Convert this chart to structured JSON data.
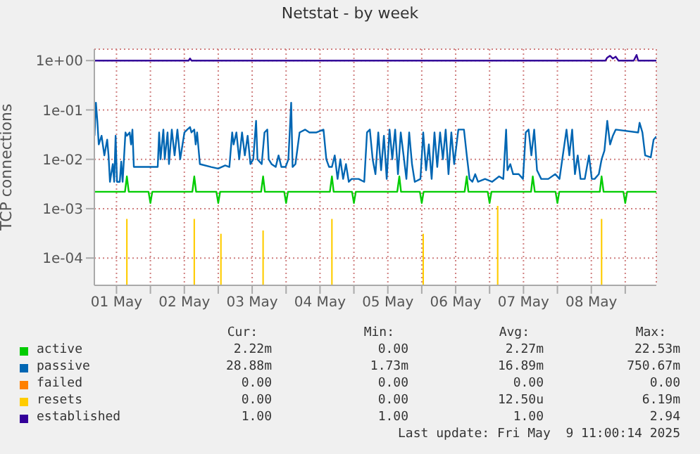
{
  "chart_data": {
    "type": "line",
    "title": "Netstat - by week",
    "ylabel": "TCP connections",
    "log": true,
    "grid": true,
    "legend": "bottom",
    "xlim": [
      "2025-05-01T04:10",
      "2025-05-09T11:00"
    ],
    "xticks": [
      {
        "value": "2025-05-01T12:00",
        "label": "01 May"
      },
      {
        "value": "2025-05-02T00:00",
        "label": null
      },
      {
        "value": "2025-05-02T12:00",
        "label": "02 May"
      },
      {
        "value": "2025-05-03T00:00",
        "label": null
      },
      {
        "value": "2025-05-03T12:00",
        "label": "03 May"
      },
      {
        "value": "2025-05-04T00:00",
        "label": null
      },
      {
        "value": "2025-05-04T12:00",
        "label": "04 May"
      },
      {
        "value": "2025-05-05T00:00",
        "label": null
      },
      {
        "value": "2025-05-05T12:00",
        "label": "05 May"
      },
      {
        "value": "2025-05-06T00:00",
        "label": null
      },
      {
        "value": "2025-05-06T12:00",
        "label": "06 May"
      },
      {
        "value": "2025-05-07T00:00",
        "label": null
      },
      {
        "value": "2025-05-07T12:00",
        "label": "07 May"
      },
      {
        "value": "2025-05-08T00:00",
        "label": null
      },
      {
        "value": "2025-05-08T12:00",
        "label": "08 May"
      },
      {
        "value": "2025-05-09T00:00",
        "label": null
      }
    ],
    "ylim": [
      2.8e-05,
      1.7
    ],
    "yticks": [
      {
        "value": 0.0001,
        "label": "1e-04"
      },
      {
        "value": 0.001,
        "label": "1e-03"
      },
      {
        "value": 0.01,
        "label": "1e-02"
      },
      {
        "value": 0.1,
        "label": "1e-01"
      },
      {
        "value": 1,
        "label": "1e+00"
      }
    ],
    "series": [
      {
        "name": "active",
        "color": "#00cc00",
        "x": [
          "2025-05-01T04:10",
          "2025-05-01T15:00",
          "2025-05-01T15:40",
          "2025-05-01T16:20",
          "2025-05-01T23:20",
          "2025-05-02T00:00",
          "2025-05-02T00:40",
          "2025-05-02T14:50",
          "2025-05-02T15:31",
          "2025-05-02T16:10",
          "2025-05-02T23:20",
          "2025-05-03T00:00",
          "2025-05-03T00:40",
          "2025-05-03T15:10",
          "2025-05-03T15:52",
          "2025-05-03T16:30",
          "2025-05-03T23:20",
          "2025-05-04T00:00",
          "2025-05-04T00:40",
          "2025-05-04T15:30",
          "2025-05-04T16:13",
          "2025-05-04T16:50",
          "2025-05-04T23:20",
          "2025-05-05T00:00",
          "2025-05-05T00:40",
          "2025-05-05T15:20",
          "2025-05-05T16:04",
          "2025-05-05T16:40",
          "2025-05-05T23:20",
          "2025-05-06T00:00",
          "2025-05-06T00:40",
          "2025-05-06T15:10",
          "2025-05-06T15:56",
          "2025-05-06T16:30",
          "2025-05-06T23:20",
          "2025-05-07T00:00",
          "2025-05-07T00:40",
          "2025-05-07T14:40",
          "2025-05-07T15:17",
          "2025-05-07T16:00",
          "2025-05-07T23:20",
          "2025-05-08T00:00",
          "2025-05-08T00:40",
          "2025-05-08T15:00",
          "2025-05-08T15:38",
          "2025-05-08T16:20",
          "2025-05-08T23:20",
          "2025-05-09T00:00",
          "2025-05-09T00:40",
          "2025-05-09T11:00"
        ],
        "values": [
          0.0022,
          0.0022,
          0.0045,
          0.0022,
          0.0022,
          0.0013,
          0.0022,
          0.0022,
          0.0045,
          0.0022,
          0.0022,
          0.0013,
          0.0022,
          0.0022,
          0.0045,
          0.0022,
          0.0022,
          0.0013,
          0.0022,
          0.0022,
          0.0045,
          0.0022,
          0.0022,
          0.0013,
          0.0022,
          0.0022,
          0.0045,
          0.0022,
          0.0022,
          0.0013,
          0.0022,
          0.0022,
          0.0045,
          0.0022,
          0.0022,
          0.0013,
          0.0022,
          0.0022,
          0.0045,
          0.0022,
          0.0022,
          0.0013,
          0.0022,
          0.0022,
          0.0045,
          0.0022,
          0.0022,
          0.0013,
          0.0022,
          0.0022
        ]
      },
      {
        "name": "passive",
        "color": "#0066b3",
        "x": [
          "2025-05-01T04:13",
          "2025-05-01T04:43",
          "2025-05-01T05:13",
          "2025-05-01T05:43",
          "2025-05-01T06:43",
          "2025-05-01T07:42",
          "2025-05-01T08:42",
          "2025-05-01T09:11",
          "2025-05-01T09:41",
          "2025-05-01T10:41",
          "2025-05-01T11:11",
          "2025-05-01T11:41",
          "2025-05-01T12:11",
          "2025-05-01T13:10",
          "2025-05-01T13:40",
          "2025-05-01T14:10",
          "2025-05-01T15:10",
          "2025-05-01T15:40",
          "2025-05-01T16:39",
          "2025-05-01T17:09",
          "2025-05-01T17:38",
          "2025-05-01T18:08",
          "2025-05-02T02:35",
          "2025-05-02T03:05",
          "2025-05-02T03:35",
          "2025-05-02T04:35",
          "2025-05-02T05:04",
          "2025-05-02T06:04",
          "2025-05-02T06:34",
          "2025-05-02T07:34",
          "2025-05-02T08:33",
          "2025-05-02T09:33",
          "2025-05-02T10:32",
          "2025-05-02T12:02",
          "2025-05-02T13:02",
          "2025-05-02T14:01",
          "2025-05-02T14:31",
          "2025-05-02T15:31",
          "2025-05-02T16:01",
          "2025-05-02T16:31",
          "2025-05-02T17:30",
          "2025-05-02T21:29",
          "2025-05-02T23:58",
          "2025-05-03T02:27",
          "2025-05-03T03:56",
          "2025-05-03T04:56",
          "2025-05-03T05:26",
          "2025-05-03T06:25",
          "2025-05-03T07:25",
          "2025-05-03T08:25",
          "2025-05-03T09:24",
          "2025-05-03T10:24",
          "2025-05-03T11:23",
          "2025-05-03T12:23",
          "2025-05-03T13:23",
          "2025-05-03T13:53",
          "2025-05-03T15:22",
          "2025-05-03T16:22",
          "2025-05-03T17:21",
          "2025-05-03T17:51",
          "2025-05-03T18:51",
          "2025-05-03T20:20",
          "2025-05-03T21:20",
          "2025-05-03T22:20",
          "2025-05-03T23:49",
          "2025-05-04T00:49",
          "2025-05-04T01:48",
          "2025-05-04T02:18",
          "2025-05-04T03:18",
          "2025-05-04T04:47",
          "2025-05-04T06:46",
          "2025-05-04T08:16",
          "2025-05-04T10:45",
          "2025-05-04T13:14",
          "2025-05-04T14:14",
          "2025-05-04T15:13",
          "2025-05-04T16:13",
          "2025-05-04T17:13",
          "2025-05-04T18:13",
          "2025-05-04T19:12",
          "2025-05-04T20:11",
          "2025-05-04T21:11",
          "2025-05-04T22:11",
          "2025-05-04T23:10",
          "2025-05-05T01:40",
          "2025-05-05T03:39",
          "2025-05-05T04:38",
          "2025-05-05T05:38",
          "2025-05-05T06:38",
          "2025-05-05T07:37",
          "2025-05-05T08:37",
          "2025-05-05T09:37",
          "2025-05-05T10:37",
          "2025-05-05T11:36",
          "2025-05-05T12:36",
          "2025-05-05T13:35",
          "2025-05-05T14:35",
          "2025-05-05T15:35",
          "2025-05-05T16:34",
          "2025-05-05T17:34",
          "2025-05-05T18:34",
          "2025-05-05T19:33",
          "2025-05-05T20:33",
          "2025-05-05T21:32",
          "2025-05-05T23:32",
          "2025-05-06T00:31",
          "2025-05-06T01:31",
          "2025-05-06T02:31",
          "2025-05-06T03:30",
          "2025-05-06T04:30",
          "2025-05-06T05:29",
          "2025-05-06T06:29",
          "2025-05-06T07:29",
          "2025-05-06T08:28",
          "2025-05-06T09:28",
          "2025-05-06T10:28",
          "2025-05-06T11:28",
          "2025-05-06T12:57",
          "2025-05-06T14:56",
          "2025-05-06T15:56",
          "2025-05-06T16:55",
          "2025-05-06T17:55",
          "2025-05-06T18:55",
          "2025-05-06T19:55",
          "2025-05-06T22:23",
          "2025-05-07T00:53",
          "2025-05-07T03:22",
          "2025-05-07T04:51",
          "2025-05-07T05:51",
          "2025-05-07T06:20",
          "2025-05-07T07:20",
          "2025-05-07T08:20",
          "2025-05-07T10:19",
          "2025-05-07T11:49",
          "2025-05-07T12:48",
          "2025-05-07T13:48",
          "2025-05-07T14:47",
          "2025-05-07T15:47",
          "2025-05-07T16:47",
          "2025-05-07T18:16",
          "2025-05-07T20:46",
          "2025-05-07T23:14",
          "2025-05-08T00:44",
          "2025-05-08T03:13",
          "2025-05-08T04:13",
          "2025-05-08T05:13",
          "2025-05-08T06:12",
          "2025-05-08T07:11",
          "2025-05-08T08:11",
          "2025-05-08T09:41",
          "2025-05-08T11:10",
          "2025-05-08T12:10",
          "2025-05-08T13:10",
          "2025-05-08T14:39",
          "2025-05-08T15:38",
          "2025-05-08T16:38",
          "2025-05-08T17:38",
          "2025-05-08T18:38",
          "2025-05-08T19:37",
          "2025-05-08T20:37",
          "2025-05-09T04:34",
          "2025-05-09T05:04",
          "2025-05-09T06:04",
          "2025-05-09T07:03",
          "2025-05-09T09:02",
          "2025-05-09T10:02",
          "2025-05-09T11:00"
        ],
        "values": [
          0.03,
          0.14,
          0.06,
          0.02,
          0.03,
          0.012,
          0.025,
          0.012,
          0.0035,
          0.008,
          0.0035,
          0.03,
          0.0035,
          0.0035,
          0.009,
          0.0035,
          0.035,
          0.03,
          0.035,
          0.02,
          0.04,
          0.007,
          0.007,
          0.035,
          0.01,
          0.04,
          0.01,
          0.035,
          0.008,
          0.04,
          0.012,
          0.04,
          0.01,
          0.035,
          0.04,
          0.045,
          0.035,
          0.04,
          0.02,
          0.035,
          0.008,
          0.007,
          0.0065,
          0.0075,
          0.007,
          0.035,
          0.02,
          0.035,
          0.01,
          0.035,
          0.012,
          0.03,
          0.008,
          0.01,
          0.06,
          0.01,
          0.008,
          0.035,
          0.04,
          0.01,
          0.008,
          0.007,
          0.012,
          0.007,
          0.007,
          0.01,
          0.14,
          0.007,
          0.008,
          0.035,
          0.04,
          0.035,
          0.035,
          0.04,
          0.01,
          0.007,
          0.007,
          0.012,
          0.004,
          0.01,
          0.004,
          0.008,
          0.0035,
          0.004,
          0.004,
          0.0035,
          0.035,
          0.04,
          0.01,
          0.005,
          0.035,
          0.006,
          0.03,
          0.004,
          0.04,
          0.01,
          0.04,
          0.005,
          0.035,
          0.012,
          0.004,
          0.035,
          0.008,
          0.0035,
          0.004,
          0.035,
          0.006,
          0.02,
          0.004,
          0.035,
          0.007,
          0.035,
          0.01,
          0.04,
          0.005,
          0.035,
          0.008,
          0.04,
          0.04,
          0.012,
          0.004,
          0.0035,
          0.005,
          0.0035,
          0.004,
          0.0035,
          0.0045,
          0.004,
          0.04,
          0.006,
          0.008,
          0.005,
          0.005,
          0.004,
          0.035,
          0.04,
          0.012,
          0.04,
          0.006,
          0.004,
          0.004,
          0.005,
          0.004,
          0.04,
          0.012,
          0.04,
          0.005,
          0.012,
          0.004,
          0.004,
          0.012,
          0.004,
          0.004,
          0.005,
          0.01,
          0.015,
          0.06,
          0.02,
          0.03,
          0.04,
          0.035,
          0.055,
          0.035,
          0.012,
          0.011,
          0.025,
          0.029
        ]
      },
      {
        "name": "failed",
        "color": "#ff8000"
      },
      {
        "name": "resets",
        "color": "#ffcc00",
        "type": "bar",
        "x": [
          "2025-05-01T15:40",
          "2025-05-02T15:31",
          "2025-05-03T00:57",
          "2025-05-03T15:52",
          "2025-05-04T16:13",
          "2025-05-06T00:31",
          "2025-05-07T02:52",
          "2025-05-08T15:38"
        ],
        "values": [
          0.0006,
          0.0006,
          0.0003,
          0.00035,
          0.0006,
          0.0003,
          0.0011,
          0.0006
        ]
      },
      {
        "name": "established",
        "color": "#330099",
        "x": [
          "2025-05-01T04:10",
          "2025-05-02T13:30",
          "2025-05-02T14:01",
          "2025-05-02T14:31",
          "2025-05-08T17:00",
          "2025-05-08T17:38",
          "2025-05-08T18:38",
          "2025-05-08T19:37",
          "2025-05-08T20:37",
          "2025-05-08T21:37",
          "2025-05-09T03:00",
          "2025-05-09T04:00",
          "2025-05-09T04:34",
          "2025-05-09T11:00"
        ],
        "values": [
          1,
          1,
          1.1,
          1,
          1,
          1.15,
          1.25,
          1.1,
          1.2,
          1,
          1,
          1.3,
          1,
          1
        ]
      }
    ],
    "annotations": [
      "Cur:",
      "Min:",
      "Avg:",
      "Max:",
      "2.22m",
      "0.00",
      "2.27m",
      "22.53m",
      "28.88m",
      "1.73m",
      "16.89m",
      "750.67m",
      "0.00",
      "0.00",
      "0.00",
      "0.00",
      "0.00",
      "0.00",
      "12.50u",
      "6.19m",
      "1.00",
      "1.00",
      "1.00",
      "2.94",
      "Last update: Fri May  9 11:00:14 2025"
    ]
  }
}
